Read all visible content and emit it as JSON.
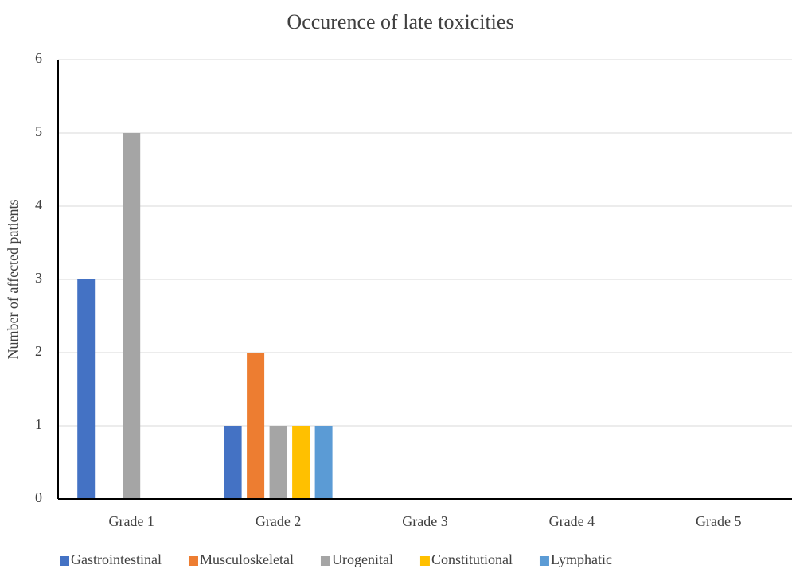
{
  "chart_data": {
    "type": "bar",
    "title": "Occurence of late toxicities",
    "y_label": "Number of affected patients",
    "categories": [
      "Grade 1",
      "Grade 2",
      "Grade 3",
      "Grade 4",
      "Grade 5"
    ],
    "series": [
      {
        "name": "Gastrointestinal",
        "color": "#4472c4",
        "values": [
          3,
          1,
          0,
          0,
          0
        ]
      },
      {
        "name": "Musculoskeletal",
        "color": "#ed7d31",
        "values": [
          0,
          2,
          0,
          0,
          0
        ]
      },
      {
        "name": "Urogenital",
        "color": "#a5a5a5",
        "values": [
          5,
          1,
          0,
          0,
          0
        ]
      },
      {
        "name": "Constitutional",
        "color": "#ffc000",
        "values": [
          0,
          1,
          0,
          0,
          0
        ]
      },
      {
        "name": "Lymphatic",
        "color": "#5b9bd5",
        "values": [
          0,
          1,
          0,
          0,
          0
        ]
      }
    ],
    "ylim": [
      0,
      6
    ],
    "yticks": [
      0,
      1,
      2,
      3,
      4,
      5,
      6
    ],
    "grid": true,
    "legend": "bottom"
  }
}
